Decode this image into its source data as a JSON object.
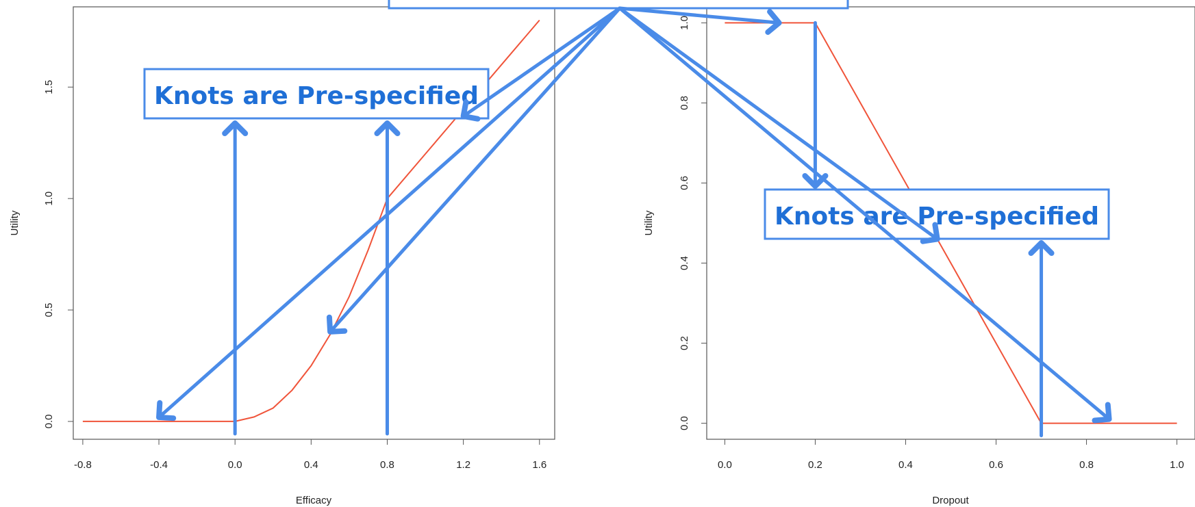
{
  "annotations": {
    "knot_label_left": "Knots are Pre-specified",
    "knot_label_right": "Knots are Pre-specified"
  },
  "colors": {
    "curve": "#f0543a",
    "annotation": "#4a8be8",
    "axis": "#555555"
  },
  "chart_data": [
    {
      "type": "line",
      "xlabel": "Efficacy",
      "ylabel": "Utility",
      "xlim": [
        -0.85,
        1.68
      ],
      "ylim": [
        -0.08,
        1.86
      ],
      "x_ticks": [
        "-0.8",
        "-0.4",
        "0.0",
        "0.4",
        "0.8",
        "1.2",
        "1.6"
      ],
      "y_ticks": [
        "0.0",
        "0.5",
        "1.0",
        "1.5"
      ],
      "knots": [
        0.0,
        0.8
      ],
      "series": [
        {
          "x": [
            -0.8,
            -0.4,
            0.0,
            0.1,
            0.2,
            0.3,
            0.4,
            0.5,
            0.6,
            0.7,
            0.8,
            1.0,
            1.2,
            1.4,
            1.6
          ],
          "values": [
            0.0,
            0.0,
            0.0,
            0.02,
            0.06,
            0.14,
            0.25,
            0.39,
            0.56,
            0.77,
            1.0,
            1.2,
            1.4,
            1.6,
            1.8
          ]
        }
      ]
    },
    {
      "type": "line",
      "xlabel": "Dropout",
      "ylabel": "Utility",
      "xlim": [
        -0.04,
        1.04
      ],
      "ylim": [
        -0.04,
        1.04
      ],
      "x_ticks": [
        "0.0",
        "0.2",
        "0.4",
        "0.6",
        "0.8",
        "1.0"
      ],
      "y_ticks": [
        "0.0",
        "0.2",
        "0.4",
        "0.6",
        "0.8",
        "1.0"
      ],
      "knots": [
        0.2,
        0.7
      ],
      "series": [
        {
          "x": [
            0.0,
            0.2,
            0.7,
            1.0
          ],
          "values": [
            1.0,
            1.0,
            0.0,
            0.0
          ]
        }
      ]
    }
  ]
}
